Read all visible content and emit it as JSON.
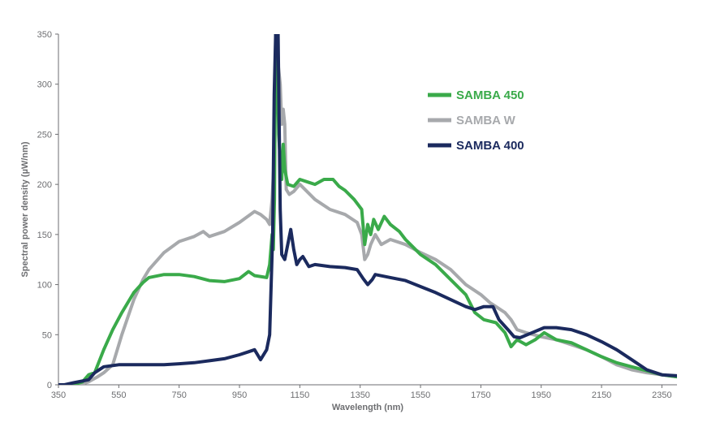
{
  "chart_data": {
    "type": "line",
    "xlabel": "Wavelength (nm)",
    "ylabel": "Spectral power density (µW/nm)",
    "xlim": [
      350,
      2400
    ],
    "ylim": [
      0,
      350
    ],
    "x_ticks": [
      350,
      550,
      750,
      950,
      1150,
      1350,
      1550,
      1750,
      1950,
      2150,
      2350
    ],
    "y_ticks": [
      0,
      50,
      100,
      150,
      200,
      250,
      300,
      350
    ],
    "grid": false,
    "legend_position": "top-right",
    "series": [
      {
        "name": "SAMBA 450",
        "color": "#3aaa4a",
        "points": [
          [
            350,
            0
          ],
          [
            400,
            0
          ],
          [
            430,
            3
          ],
          [
            450,
            10
          ],
          [
            470,
            12
          ],
          [
            500,
            35
          ],
          [
            530,
            55
          ],
          [
            560,
            72
          ],
          [
            600,
            92
          ],
          [
            630,
            102
          ],
          [
            650,
            107
          ],
          [
            700,
            110
          ],
          [
            750,
            110
          ],
          [
            800,
            108
          ],
          [
            850,
            104
          ],
          [
            900,
            103
          ],
          [
            950,
            106
          ],
          [
            980,
            113
          ],
          [
            1000,
            109
          ],
          [
            1040,
            107
          ],
          [
            1050,
            120
          ],
          [
            1058,
            150
          ],
          [
            1062,
            135
          ],
          [
            1066,
            185
          ],
          [
            1070,
            350
          ],
          [
            1076,
            320
          ],
          [
            1080,
            250
          ],
          [
            1085,
            225
          ],
          [
            1090,
            205
          ],
          [
            1095,
            240
          ],
          [
            1100,
            215
          ],
          [
            1110,
            200
          ],
          [
            1130,
            198
          ],
          [
            1150,
            205
          ],
          [
            1180,
            202
          ],
          [
            1200,
            200
          ],
          [
            1230,
            205
          ],
          [
            1260,
            205
          ],
          [
            1280,
            198
          ],
          [
            1300,
            194
          ],
          [
            1330,
            185
          ],
          [
            1355,
            175
          ],
          [
            1365,
            140
          ],
          [
            1375,
            160
          ],
          [
            1385,
            150
          ],
          [
            1395,
            165
          ],
          [
            1410,
            155
          ],
          [
            1430,
            168
          ],
          [
            1450,
            160
          ],
          [
            1480,
            153
          ],
          [
            1500,
            145
          ],
          [
            1550,
            130
          ],
          [
            1600,
            120
          ],
          [
            1650,
            105
          ],
          [
            1700,
            90
          ],
          [
            1730,
            72
          ],
          [
            1760,
            65
          ],
          [
            1800,
            62
          ],
          [
            1830,
            52
          ],
          [
            1850,
            38
          ],
          [
            1870,
            45
          ],
          [
            1900,
            40
          ],
          [
            1930,
            45
          ],
          [
            1960,
            52
          ],
          [
            2000,
            45
          ],
          [
            2050,
            42
          ],
          [
            2100,
            35
          ],
          [
            2150,
            28
          ],
          [
            2200,
            22
          ],
          [
            2250,
            18
          ],
          [
            2300,
            14
          ],
          [
            2350,
            10
          ],
          [
            2400,
            8
          ]
        ]
      },
      {
        "name": "SAMBA W",
        "color": "#a7a9ac",
        "points": [
          [
            350,
            0
          ],
          [
            420,
            0
          ],
          [
            450,
            3
          ],
          [
            480,
            8
          ],
          [
            500,
            12
          ],
          [
            530,
            20
          ],
          [
            560,
            50
          ],
          [
            600,
            85
          ],
          [
            630,
            105
          ],
          [
            650,
            115
          ],
          [
            700,
            132
          ],
          [
            750,
            143
          ],
          [
            800,
            148
          ],
          [
            830,
            153
          ],
          [
            850,
            148
          ],
          [
            900,
            153
          ],
          [
            950,
            162
          ],
          [
            1000,
            173
          ],
          [
            1020,
            170
          ],
          [
            1040,
            165
          ],
          [
            1050,
            160
          ],
          [
            1058,
            185
          ],
          [
            1064,
            220
          ],
          [
            1070,
            310
          ],
          [
            1078,
            320
          ],
          [
            1085,
            300
          ],
          [
            1090,
            260
          ],
          [
            1095,
            275
          ],
          [
            1100,
            260
          ],
          [
            1105,
            195
          ],
          [
            1115,
            190
          ],
          [
            1130,
            193
          ],
          [
            1150,
            200
          ],
          [
            1200,
            185
          ],
          [
            1250,
            175
          ],
          [
            1300,
            170
          ],
          [
            1340,
            162
          ],
          [
            1355,
            150
          ],
          [
            1365,
            125
          ],
          [
            1375,
            130
          ],
          [
            1385,
            140
          ],
          [
            1400,
            150
          ],
          [
            1420,
            140
          ],
          [
            1450,
            145
          ],
          [
            1500,
            140
          ],
          [
            1550,
            132
          ],
          [
            1600,
            125
          ],
          [
            1650,
            115
          ],
          [
            1700,
            100
          ],
          [
            1750,
            90
          ],
          [
            1780,
            82
          ],
          [
            1800,
            78
          ],
          [
            1830,
            72
          ],
          [
            1850,
            65
          ],
          [
            1870,
            55
          ],
          [
            1900,
            52
          ],
          [
            1950,
            48
          ],
          [
            2000,
            45
          ],
          [
            2050,
            40
          ],
          [
            2100,
            35
          ],
          [
            2150,
            28
          ],
          [
            2200,
            20
          ],
          [
            2250,
            15
          ],
          [
            2300,
            12
          ],
          [
            2350,
            10
          ],
          [
            2400,
            8
          ]
        ]
      },
      {
        "name": "SAMBA 400",
        "color": "#1b2a5e",
        "points": [
          [
            350,
            0
          ],
          [
            370,
            0
          ],
          [
            400,
            2
          ],
          [
            450,
            5
          ],
          [
            470,
            12
          ],
          [
            500,
            18
          ],
          [
            550,
            20
          ],
          [
            600,
            20
          ],
          [
            650,
            20
          ],
          [
            700,
            20
          ],
          [
            750,
            21
          ],
          [
            800,
            22
          ],
          [
            850,
            24
          ],
          [
            900,
            26
          ],
          [
            950,
            30
          ],
          [
            980,
            33
          ],
          [
            1000,
            35
          ],
          [
            1020,
            25
          ],
          [
            1040,
            35
          ],
          [
            1050,
            50
          ],
          [
            1060,
            150
          ],
          [
            1065,
            290
          ],
          [
            1070,
            350
          ],
          [
            1078,
            350
          ],
          [
            1085,
            175
          ],
          [
            1090,
            130
          ],
          [
            1100,
            125
          ],
          [
            1110,
            140
          ],
          [
            1120,
            155
          ],
          [
            1130,
            135
          ],
          [
            1140,
            120
          ],
          [
            1150,
            125
          ],
          [
            1160,
            128
          ],
          [
            1180,
            118
          ],
          [
            1200,
            120
          ],
          [
            1250,
            118
          ],
          [
            1300,
            117
          ],
          [
            1340,
            115
          ],
          [
            1360,
            106
          ],
          [
            1375,
            100
          ],
          [
            1390,
            105
          ],
          [
            1400,
            110
          ],
          [
            1450,
            107
          ],
          [
            1500,
            104
          ],
          [
            1550,
            98
          ],
          [
            1600,
            92
          ],
          [
            1650,
            85
          ],
          [
            1700,
            78
          ],
          [
            1730,
            75
          ],
          [
            1760,
            78
          ],
          [
            1790,
            78
          ],
          [
            1810,
            65
          ],
          [
            1840,
            55
          ],
          [
            1860,
            48
          ],
          [
            1880,
            47
          ],
          [
            1920,
            52
          ],
          [
            1960,
            57
          ],
          [
            2000,
            57
          ],
          [
            2050,
            55
          ],
          [
            2100,
            50
          ],
          [
            2150,
            43
          ],
          [
            2200,
            35
          ],
          [
            2250,
            25
          ],
          [
            2300,
            15
          ],
          [
            2350,
            10
          ],
          [
            2400,
            9
          ]
        ]
      }
    ]
  }
}
